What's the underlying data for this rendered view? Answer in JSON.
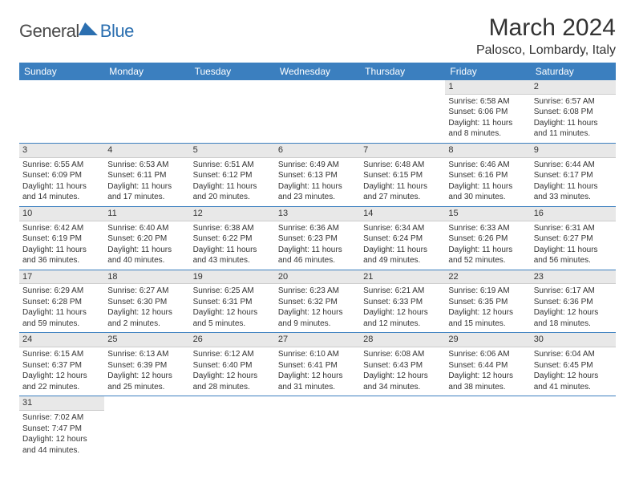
{
  "brand": {
    "part1": "General",
    "part2": "Blue"
  },
  "title": "March 2024",
  "location": "Palosco, Lombardy, Italy",
  "colors": {
    "header_bg": "#3b7fbf",
    "header_text": "#ffffff",
    "row_divider": "#3b7fbf",
    "daynum_bg": "#e8e8e8",
    "brand_blue": "#2b6fb0"
  },
  "weekdays": [
    "Sunday",
    "Monday",
    "Tuesday",
    "Wednesday",
    "Thursday",
    "Friday",
    "Saturday"
  ],
  "weeks": [
    [
      null,
      null,
      null,
      null,
      null,
      {
        "n": "1",
        "sr": "Sunrise: 6:58 AM",
        "ss": "Sunset: 6:06 PM",
        "dl1": "Daylight: 11 hours",
        "dl2": "and 8 minutes."
      },
      {
        "n": "2",
        "sr": "Sunrise: 6:57 AM",
        "ss": "Sunset: 6:08 PM",
        "dl1": "Daylight: 11 hours",
        "dl2": "and 11 minutes."
      }
    ],
    [
      {
        "n": "3",
        "sr": "Sunrise: 6:55 AM",
        "ss": "Sunset: 6:09 PM",
        "dl1": "Daylight: 11 hours",
        "dl2": "and 14 minutes."
      },
      {
        "n": "4",
        "sr": "Sunrise: 6:53 AM",
        "ss": "Sunset: 6:11 PM",
        "dl1": "Daylight: 11 hours",
        "dl2": "and 17 minutes."
      },
      {
        "n": "5",
        "sr": "Sunrise: 6:51 AM",
        "ss": "Sunset: 6:12 PM",
        "dl1": "Daylight: 11 hours",
        "dl2": "and 20 minutes."
      },
      {
        "n": "6",
        "sr": "Sunrise: 6:49 AM",
        "ss": "Sunset: 6:13 PM",
        "dl1": "Daylight: 11 hours",
        "dl2": "and 23 minutes."
      },
      {
        "n": "7",
        "sr": "Sunrise: 6:48 AM",
        "ss": "Sunset: 6:15 PM",
        "dl1": "Daylight: 11 hours",
        "dl2": "and 27 minutes."
      },
      {
        "n": "8",
        "sr": "Sunrise: 6:46 AM",
        "ss": "Sunset: 6:16 PM",
        "dl1": "Daylight: 11 hours",
        "dl2": "and 30 minutes."
      },
      {
        "n": "9",
        "sr": "Sunrise: 6:44 AM",
        "ss": "Sunset: 6:17 PM",
        "dl1": "Daylight: 11 hours",
        "dl2": "and 33 minutes."
      }
    ],
    [
      {
        "n": "10",
        "sr": "Sunrise: 6:42 AM",
        "ss": "Sunset: 6:19 PM",
        "dl1": "Daylight: 11 hours",
        "dl2": "and 36 minutes."
      },
      {
        "n": "11",
        "sr": "Sunrise: 6:40 AM",
        "ss": "Sunset: 6:20 PM",
        "dl1": "Daylight: 11 hours",
        "dl2": "and 40 minutes."
      },
      {
        "n": "12",
        "sr": "Sunrise: 6:38 AM",
        "ss": "Sunset: 6:22 PM",
        "dl1": "Daylight: 11 hours",
        "dl2": "and 43 minutes."
      },
      {
        "n": "13",
        "sr": "Sunrise: 6:36 AM",
        "ss": "Sunset: 6:23 PM",
        "dl1": "Daylight: 11 hours",
        "dl2": "and 46 minutes."
      },
      {
        "n": "14",
        "sr": "Sunrise: 6:34 AM",
        "ss": "Sunset: 6:24 PM",
        "dl1": "Daylight: 11 hours",
        "dl2": "and 49 minutes."
      },
      {
        "n": "15",
        "sr": "Sunrise: 6:33 AM",
        "ss": "Sunset: 6:26 PM",
        "dl1": "Daylight: 11 hours",
        "dl2": "and 52 minutes."
      },
      {
        "n": "16",
        "sr": "Sunrise: 6:31 AM",
        "ss": "Sunset: 6:27 PM",
        "dl1": "Daylight: 11 hours",
        "dl2": "and 56 minutes."
      }
    ],
    [
      {
        "n": "17",
        "sr": "Sunrise: 6:29 AM",
        "ss": "Sunset: 6:28 PM",
        "dl1": "Daylight: 11 hours",
        "dl2": "and 59 minutes."
      },
      {
        "n": "18",
        "sr": "Sunrise: 6:27 AM",
        "ss": "Sunset: 6:30 PM",
        "dl1": "Daylight: 12 hours",
        "dl2": "and 2 minutes."
      },
      {
        "n": "19",
        "sr": "Sunrise: 6:25 AM",
        "ss": "Sunset: 6:31 PM",
        "dl1": "Daylight: 12 hours",
        "dl2": "and 5 minutes."
      },
      {
        "n": "20",
        "sr": "Sunrise: 6:23 AM",
        "ss": "Sunset: 6:32 PM",
        "dl1": "Daylight: 12 hours",
        "dl2": "and 9 minutes."
      },
      {
        "n": "21",
        "sr": "Sunrise: 6:21 AM",
        "ss": "Sunset: 6:33 PM",
        "dl1": "Daylight: 12 hours",
        "dl2": "and 12 minutes."
      },
      {
        "n": "22",
        "sr": "Sunrise: 6:19 AM",
        "ss": "Sunset: 6:35 PM",
        "dl1": "Daylight: 12 hours",
        "dl2": "and 15 minutes."
      },
      {
        "n": "23",
        "sr": "Sunrise: 6:17 AM",
        "ss": "Sunset: 6:36 PM",
        "dl1": "Daylight: 12 hours",
        "dl2": "and 18 minutes."
      }
    ],
    [
      {
        "n": "24",
        "sr": "Sunrise: 6:15 AM",
        "ss": "Sunset: 6:37 PM",
        "dl1": "Daylight: 12 hours",
        "dl2": "and 22 minutes."
      },
      {
        "n": "25",
        "sr": "Sunrise: 6:13 AM",
        "ss": "Sunset: 6:39 PM",
        "dl1": "Daylight: 12 hours",
        "dl2": "and 25 minutes."
      },
      {
        "n": "26",
        "sr": "Sunrise: 6:12 AM",
        "ss": "Sunset: 6:40 PM",
        "dl1": "Daylight: 12 hours",
        "dl2": "and 28 minutes."
      },
      {
        "n": "27",
        "sr": "Sunrise: 6:10 AM",
        "ss": "Sunset: 6:41 PM",
        "dl1": "Daylight: 12 hours",
        "dl2": "and 31 minutes."
      },
      {
        "n": "28",
        "sr": "Sunrise: 6:08 AM",
        "ss": "Sunset: 6:43 PM",
        "dl1": "Daylight: 12 hours",
        "dl2": "and 34 minutes."
      },
      {
        "n": "29",
        "sr": "Sunrise: 6:06 AM",
        "ss": "Sunset: 6:44 PM",
        "dl1": "Daylight: 12 hours",
        "dl2": "and 38 minutes."
      },
      {
        "n": "30",
        "sr": "Sunrise: 6:04 AM",
        "ss": "Sunset: 6:45 PM",
        "dl1": "Daylight: 12 hours",
        "dl2": "and 41 minutes."
      }
    ],
    [
      {
        "n": "31",
        "sr": "Sunrise: 7:02 AM",
        "ss": "Sunset: 7:47 PM",
        "dl1": "Daylight: 12 hours",
        "dl2": "and 44 minutes."
      },
      null,
      null,
      null,
      null,
      null,
      null
    ]
  ]
}
